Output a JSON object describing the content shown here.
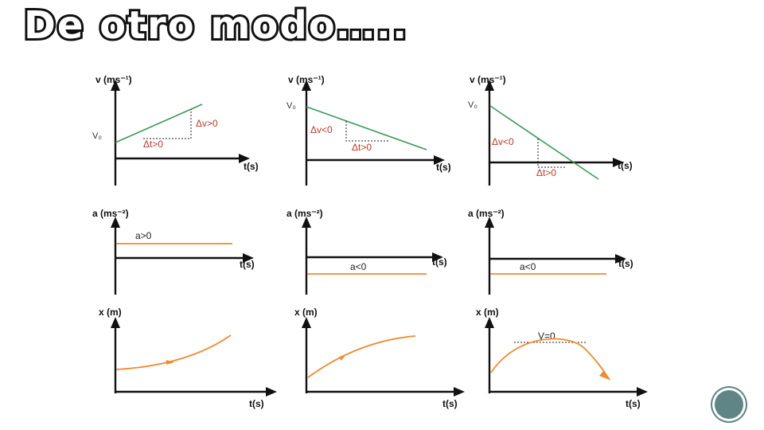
{
  "slide": {
    "title": "De otro modo….."
  },
  "axis_labels": {
    "velocity": "v (ms⁻¹)",
    "acceleration": "a (ms⁻²)",
    "position": "x (m)",
    "time": "t(s)",
    "initial_velocity": "V₀"
  },
  "annotations": {
    "dv_pos": "Δv>0",
    "dt_pos": "Δt>0",
    "dv_neg": "Δv<0",
    "a_pos": "a>0",
    "a_neg": "a<0",
    "v_zero": "V=0"
  },
  "colors": {
    "velocity_line": "#3a9a5a",
    "acceleration_line": "#f08a2c",
    "position_curve": "#f08a2c",
    "delta_labels": "#c0392b",
    "nav_button": "#5f8587"
  },
  "nav": {
    "icon": "circle-button-icon"
  }
}
